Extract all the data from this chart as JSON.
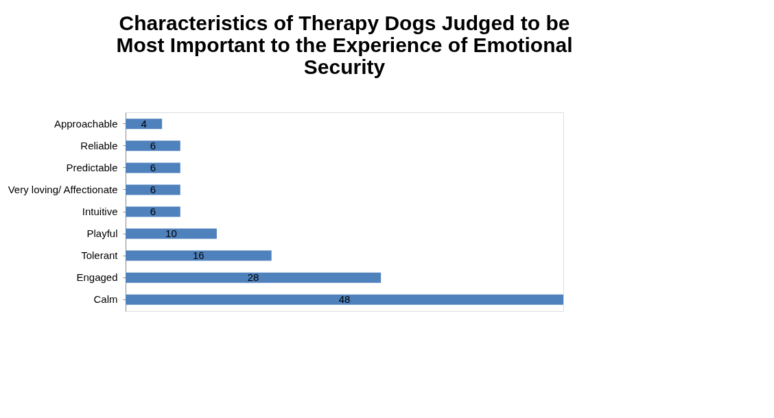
{
  "chart_data": {
    "type": "bar",
    "orientation": "horizontal",
    "title": [
      "Characteristics of Therapy Dogs Judged to be",
      "Most Important to the Experience of Emotional",
      "Security"
    ],
    "categories": [
      "Approachable",
      "Reliable",
      "Predictable",
      "Very loving/ Affectionate",
      "Intuitive",
      "Playful",
      "Tolerant",
      "Engaged",
      "Calm"
    ],
    "values": [
      4,
      6,
      6,
      6,
      6,
      10,
      16,
      28,
      48
    ],
    "color": "#4f81bd",
    "data_labels": true,
    "grid": false,
    "tick_labels": "y"
  }
}
